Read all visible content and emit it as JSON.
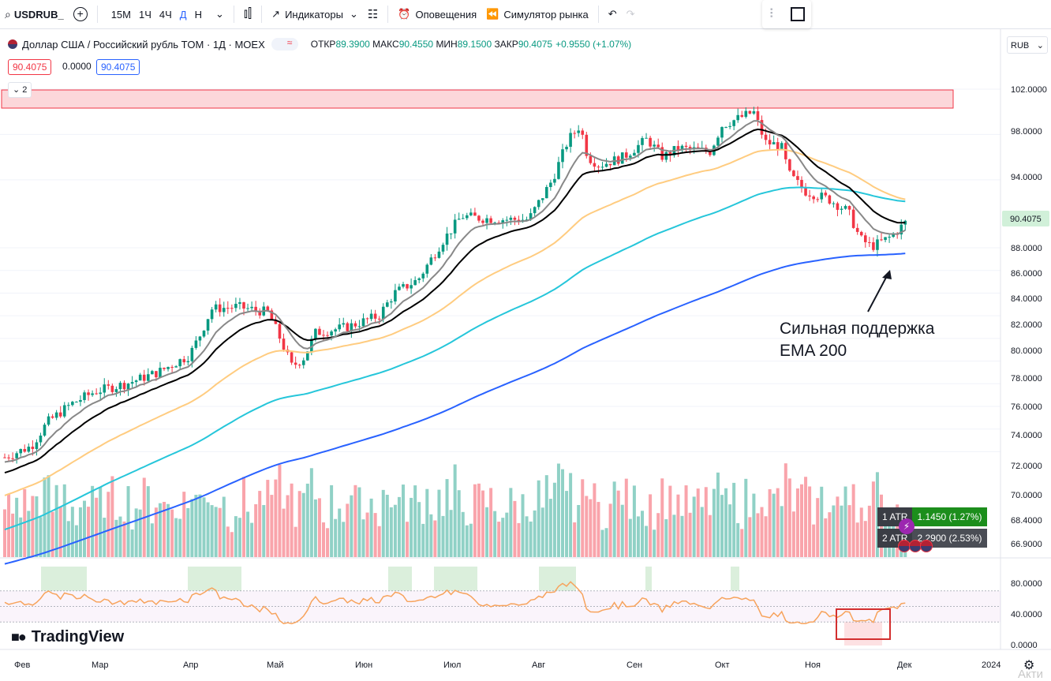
{
  "toolbar": {
    "symbol": "USDRUB_",
    "timeframes": [
      "15М",
      "1Ч",
      "4Ч",
      "Д",
      "Н"
    ],
    "active_tf": "Д",
    "indicators": "Индикаторы",
    "alerts": "Оповещения",
    "replay": "Симулятор рынка"
  },
  "legend": {
    "title": "Доллар США / Российский рубль TOM · 1Д · MOEX",
    "open_label": "ОТКР",
    "open": "89.3900",
    "high_label": "МАКС",
    "high": "90.4550",
    "low_label": "МИН",
    "low": "89.1500",
    "close_label": "ЗАКР",
    "close": "90.4075",
    "change": "+0.9550 (+1.07%)",
    "bid": "90.4075",
    "spread": "0.0000",
    "ask": "90.4075",
    "collapsed_count": "2"
  },
  "currency": "RUB",
  "price_axis": [
    "102.0000",
    "98.0000",
    "94.0000",
    "88.0000",
    "86.0000",
    "84.0000",
    "82.0000",
    "80.0000",
    "78.0000",
    "76.0000",
    "74.0000",
    "72.0000",
    "70.0000",
    "68.4000",
    "66.9000"
  ],
  "last_price_label": "90.4075",
  "rsi_axis": [
    "80.0000",
    "40.0000",
    "0.0000"
  ],
  "time_axis": [
    "Фев",
    "Мар",
    "Апр",
    "Май",
    "Июн",
    "Июл",
    "Авг",
    "Сен",
    "Окт",
    "Ноя",
    "Дек",
    "2024"
  ],
  "annotation": {
    "line1": "Сильная поддержка",
    "line2": "EMA 200"
  },
  "atr": {
    "row1_label": "1 ATR",
    "row1_value": "1.1450 (1.27%)",
    "row2_label": "2 ATR",
    "row2_value": "2.2900 (2.53%)"
  },
  "brand": "TradingView",
  "watermark": "Акти",
  "colors": {
    "up": "#089981",
    "down": "#f23645",
    "ema200": "#2962ff",
    "ema100": "#26c6da",
    "ema50": "#ffcc80",
    "ema20": "#000000",
    "ema10": "#888888",
    "rsi": "#f7a35c"
  }
}
